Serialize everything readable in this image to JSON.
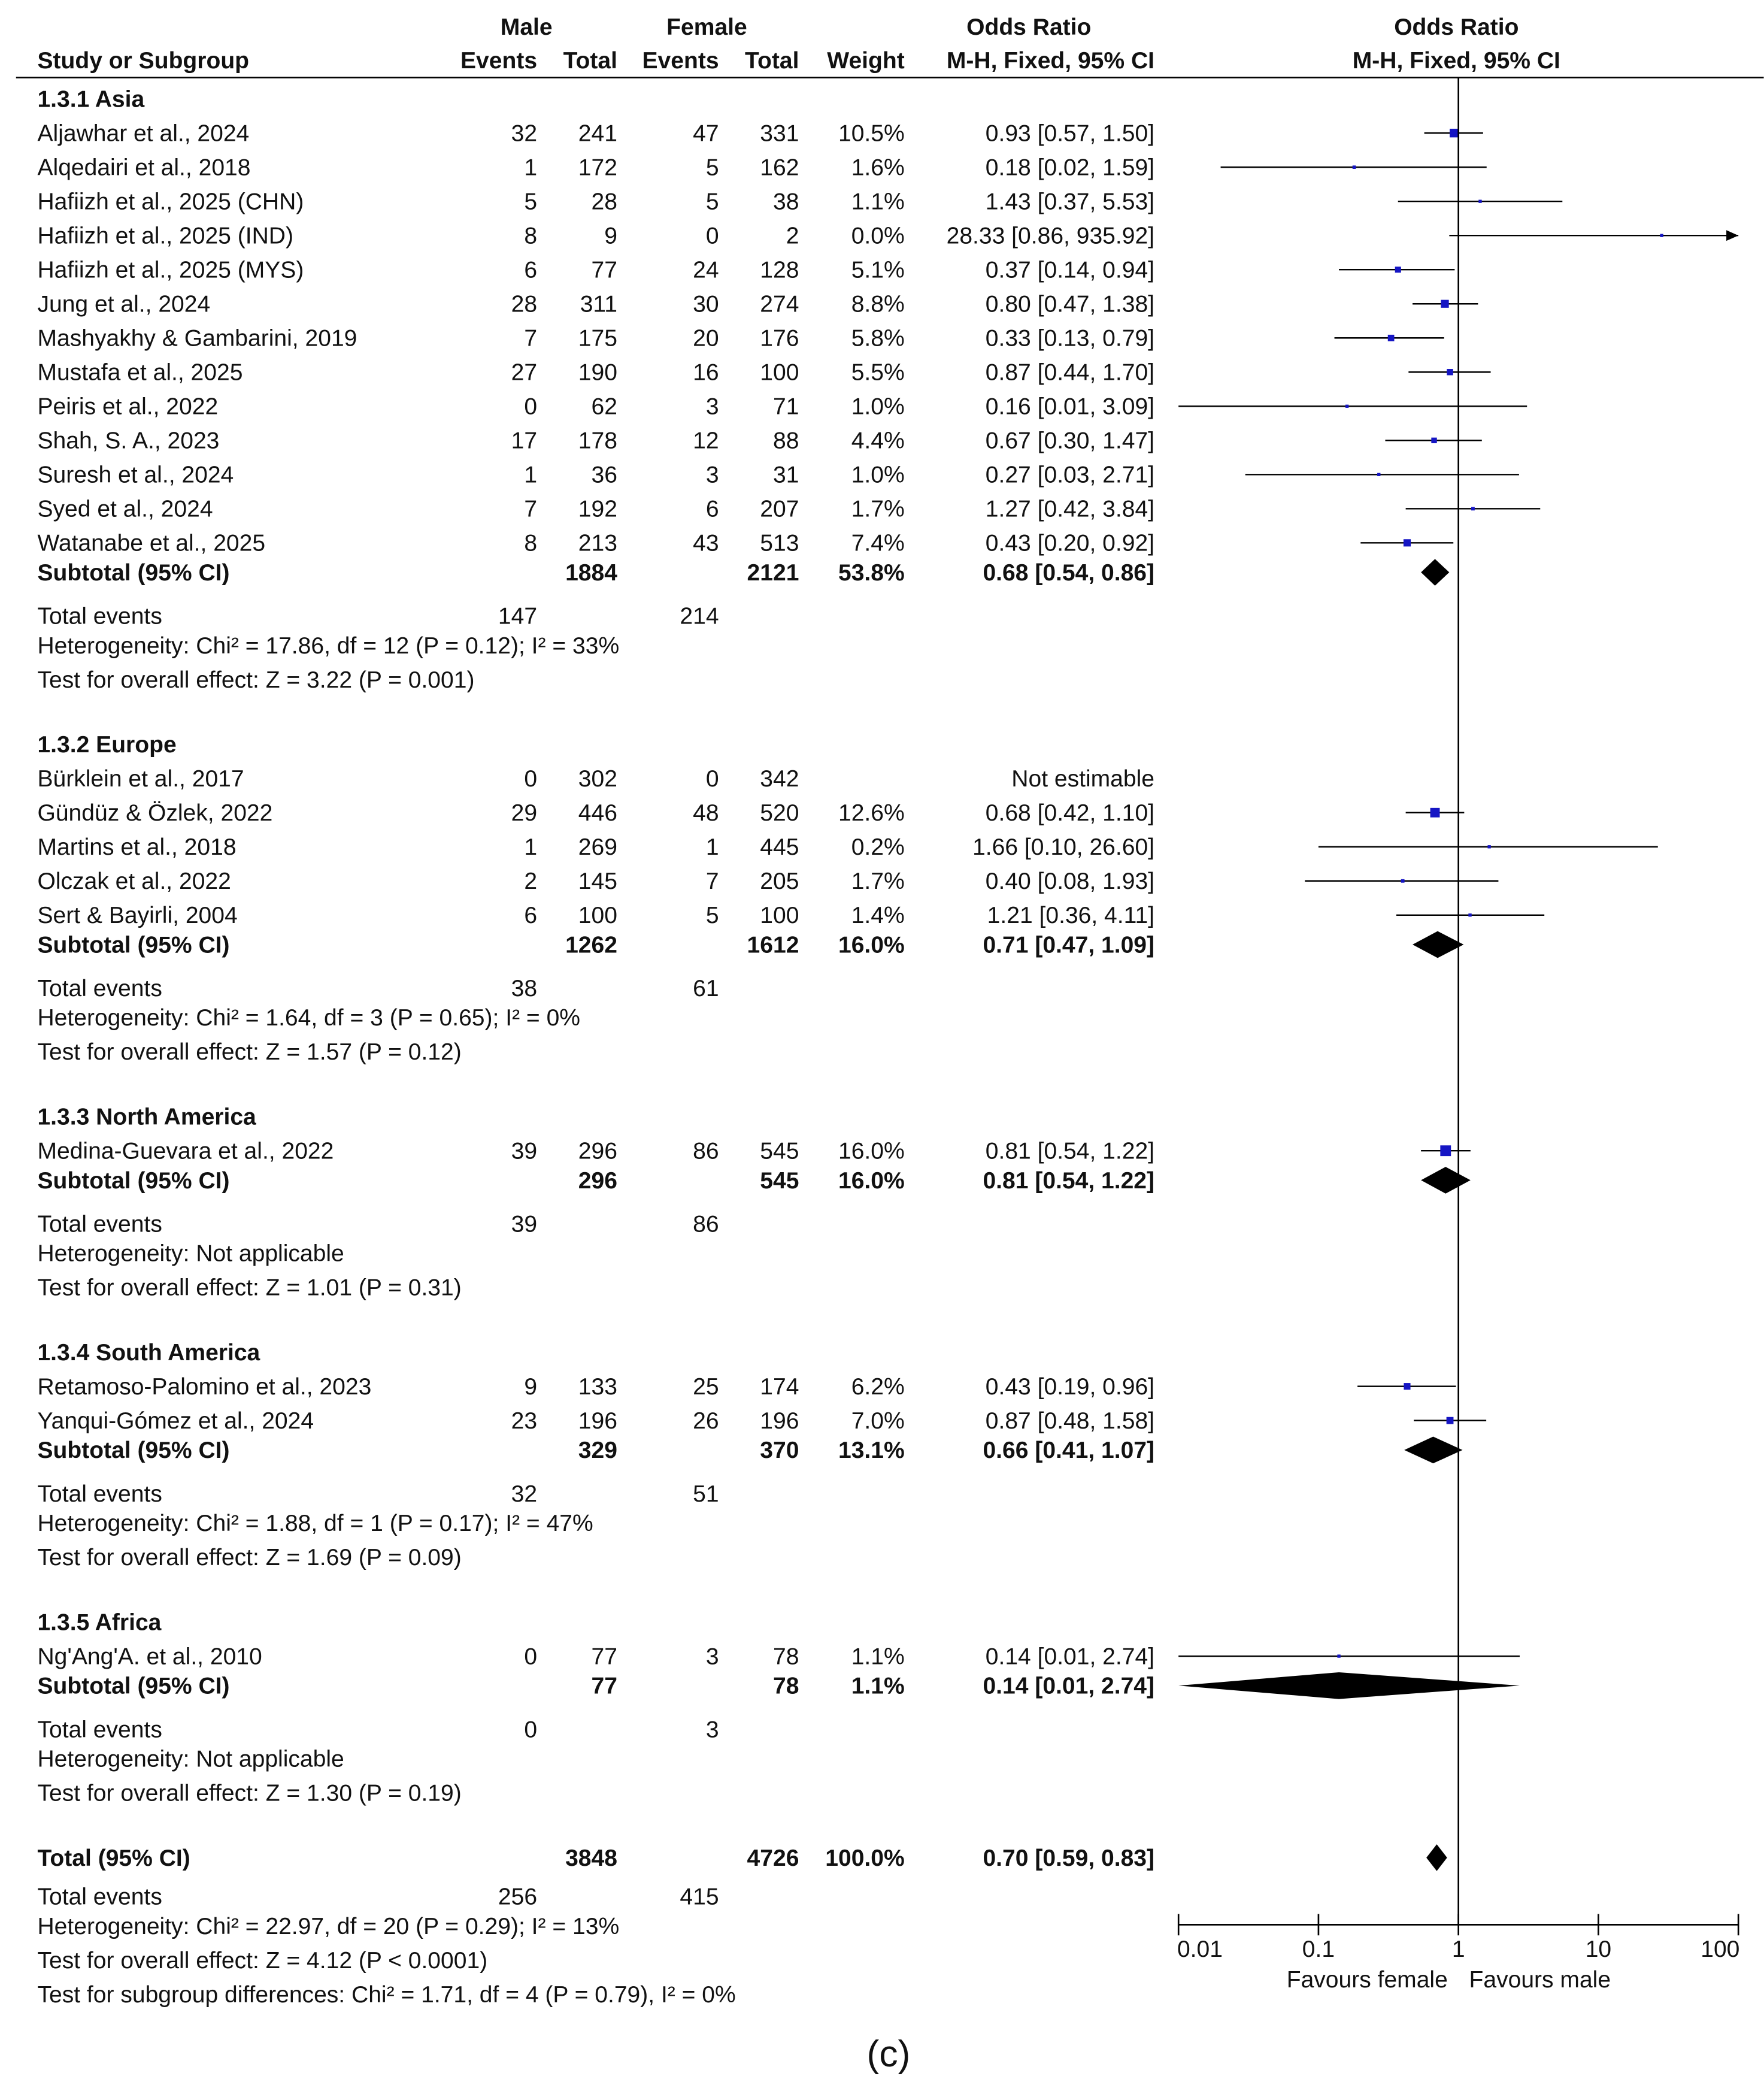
{
  "header": {
    "study_col": "Study or Subgroup",
    "male": "Male",
    "female": "Female",
    "events": "Events",
    "total": "Total",
    "weight": "Weight",
    "or_title": "Odds Ratio",
    "or_method": "M-H, Fixed, 95% CI",
    "plot_title": "Odds Ratio",
    "plot_method": "M-H, Fixed, 95% CI"
  },
  "chart_data": {
    "type": "forest",
    "measure": "Odds Ratio",
    "method": "M-H, Fixed, 95% CI",
    "x_scale": "log",
    "xlim": [
      0.01,
      100
    ],
    "ticks": [
      "0.01",
      "0.1",
      "1",
      "10",
      "100"
    ],
    "favours_left": "Favours female",
    "favours_right": "Favours male",
    "rows": [
      {
        "kind": "group",
        "label": "1.3.1 Asia"
      },
      {
        "kind": "study",
        "label": "Aljawhar et al., 2024",
        "me": "32",
        "mt": "241",
        "fe": "47",
        "ft": "331",
        "w": "10.5%",
        "ci": "0.93 [0.57, 1.50]",
        "or": 0.93,
        "lo": 0.57,
        "hi": 1.5,
        "wt": 10.5
      },
      {
        "kind": "study",
        "label": "Alqedairi et al., 2018",
        "me": "1",
        "mt": "172",
        "fe": "5",
        "ft": "162",
        "w": "1.6%",
        "ci": "0.18 [0.02, 1.59]",
        "or": 0.18,
        "lo": 0.02,
        "hi": 1.59,
        "wt": 1.6
      },
      {
        "kind": "study",
        "label": "Hafiizh et al., 2025 (CHN)",
        "me": "5",
        "mt": "28",
        "fe": "5",
        "ft": "38",
        "w": "1.1%",
        "ci": "1.43 [0.37, 5.53]",
        "or": 1.43,
        "lo": 0.37,
        "hi": 5.53,
        "wt": 1.1
      },
      {
        "kind": "study",
        "label": "Hafiizh et al., 2025 (IND)",
        "me": "8",
        "mt": "9",
        "fe": "0",
        "ft": "2",
        "w": "0.0%",
        "ci": "28.33 [0.86, 935.92]",
        "or": 28.33,
        "lo": 0.86,
        "hi": 935.92,
        "wt": 0.0
      },
      {
        "kind": "study",
        "label": "Hafiizh et al., 2025 (MYS)",
        "me": "6",
        "mt": "77",
        "fe": "24",
        "ft": "128",
        "w": "5.1%",
        "ci": "0.37 [0.14, 0.94]",
        "or": 0.37,
        "lo": 0.14,
        "hi": 0.94,
        "wt": 5.1
      },
      {
        "kind": "study",
        "label": "Jung et al.,  2024",
        "me": "28",
        "mt": "311",
        "fe": "30",
        "ft": "274",
        "w": "8.8%",
        "ci": "0.80 [0.47, 1.38]",
        "or": 0.8,
        "lo": 0.47,
        "hi": 1.38,
        "wt": 8.8
      },
      {
        "kind": "study",
        "label": "Mashyakhy & Gambarini, 2019",
        "me": "7",
        "mt": "175",
        "fe": "20",
        "ft": "176",
        "w": "5.8%",
        "ci": "0.33 [0.13, 0.79]",
        "or": 0.33,
        "lo": 0.13,
        "hi": 0.79,
        "wt": 5.8
      },
      {
        "kind": "study",
        "label": "Mustafa et al.,  2025",
        "me": "27",
        "mt": "190",
        "fe": "16",
        "ft": "100",
        "w": "5.5%",
        "ci": "0.87 [0.44, 1.70]",
        "or": 0.87,
        "lo": 0.44,
        "hi": 1.7,
        "wt": 5.5
      },
      {
        "kind": "study",
        "label": "Peiris et al., 2022",
        "me": "0",
        "mt": "62",
        "fe": "3",
        "ft": "71",
        "w": "1.0%",
        "ci": "0.16 [0.01, 3.09]",
        "or": 0.16,
        "lo": 0.01,
        "hi": 3.09,
        "wt": 1.0
      },
      {
        "kind": "study",
        "label": "Shah, S. A., 2023",
        "me": "17",
        "mt": "178",
        "fe": "12",
        "ft": "88",
        "w": "4.4%",
        "ci": "0.67 [0.30, 1.47]",
        "or": 0.67,
        "lo": 0.3,
        "hi": 1.47,
        "wt": 4.4
      },
      {
        "kind": "study",
        "label": "Suresh et al.,  2024",
        "me": "1",
        "mt": "36",
        "fe": "3",
        "ft": "31",
        "w": "1.0%",
        "ci": "0.27 [0.03, 2.71]",
        "or": 0.27,
        "lo": 0.03,
        "hi": 2.71,
        "wt": 1.0
      },
      {
        "kind": "study",
        "label": "Syed et al., 2024",
        "me": "7",
        "mt": "192",
        "fe": "6",
        "ft": "207",
        "w": "1.7%",
        "ci": "1.27 [0.42, 3.84]",
        "or": 1.27,
        "lo": 0.42,
        "hi": 3.84,
        "wt": 1.7
      },
      {
        "kind": "study",
        "label": "Watanabe et al., 2025",
        "me": "8",
        "mt": "213",
        "fe": "43",
        "ft": "513",
        "w": "7.4%",
        "ci": "0.43 [0.20, 0.92]",
        "or": 0.43,
        "lo": 0.2,
        "hi": 0.92,
        "wt": 7.4
      },
      {
        "kind": "subtotal",
        "label": "Subtotal (95% CI)",
        "mt": "1884",
        "ft": "2121",
        "w": "53.8%",
        "ci": "0.68 [0.54, 0.86]",
        "or": 0.68,
        "lo": 0.54,
        "hi": 0.86
      },
      {
        "kind": "events",
        "label": "Total events",
        "me": "147",
        "fe": "214"
      },
      {
        "kind": "note",
        "label": "Heterogeneity: Chi² = 17.86, df = 12 (P = 0.12); I² = 33%"
      },
      {
        "kind": "note",
        "label": "Test for overall effect: Z = 3.22 (P = 0.001)"
      },
      {
        "kind": "group",
        "label": "1.3.2 Europe"
      },
      {
        "kind": "study",
        "label": "Bürklein et al., 2017",
        "me": "0",
        "mt": "302",
        "fe": "0",
        "ft": "342",
        "w": "",
        "ci": "Not estimable"
      },
      {
        "kind": "study",
        "label": "Gündüz & Özlek, 2022",
        "me": "29",
        "mt": "446",
        "fe": "48",
        "ft": "520",
        "w": "12.6%",
        "ci": "0.68 [0.42, 1.10]",
        "or": 0.68,
        "lo": 0.42,
        "hi": 1.1,
        "wt": 12.6
      },
      {
        "kind": "study",
        "label": "Martins et al., 2018",
        "me": "1",
        "mt": "269",
        "fe": "1",
        "ft": "445",
        "w": "0.2%",
        "ci": "1.66 [0.10, 26.60]",
        "or": 1.66,
        "lo": 0.1,
        "hi": 26.6,
        "wt": 0.2
      },
      {
        "kind": "study",
        "label": "Olczak et al., 2022",
        "me": "2",
        "mt": "145",
        "fe": "7",
        "ft": "205",
        "w": "1.7%",
        "ci": "0.40 [0.08, 1.93]",
        "or": 0.4,
        "lo": 0.08,
        "hi": 1.93,
        "wt": 1.7
      },
      {
        "kind": "study",
        "label": "Sert & Bayirli, 2004",
        "me": "6",
        "mt": "100",
        "fe": "5",
        "ft": "100",
        "w": "1.4%",
        "ci": "1.21 [0.36, 4.11]",
        "or": 1.21,
        "lo": 0.36,
        "hi": 4.11,
        "wt": 1.4
      },
      {
        "kind": "subtotal",
        "label": "Subtotal (95% CI)",
        "mt": "1262",
        "ft": "1612",
        "w": "16.0%",
        "ci": "0.71 [0.47, 1.09]",
        "or": 0.71,
        "lo": 0.47,
        "hi": 1.09
      },
      {
        "kind": "events",
        "label": "Total events",
        "me": "38",
        "fe": "61"
      },
      {
        "kind": "note",
        "label": "Heterogeneity: Chi² = 1.64, df = 3 (P = 0.65); I² = 0%"
      },
      {
        "kind": "note",
        "label": "Test for overall effect: Z = 1.57 (P = 0.12)"
      },
      {
        "kind": "group",
        "label": "1.3.3 North America"
      },
      {
        "kind": "study",
        "label": "Medina-Guevara et al., 2022",
        "me": "39",
        "mt": "296",
        "fe": "86",
        "ft": "545",
        "w": "16.0%",
        "ci": "0.81 [0.54, 1.22]",
        "or": 0.81,
        "lo": 0.54,
        "hi": 1.22,
        "wt": 16.0
      },
      {
        "kind": "subtotal",
        "label": "Subtotal (95% CI)",
        "mt": "296",
        "ft": "545",
        "w": "16.0%",
        "ci": "0.81 [0.54, 1.22]",
        "or": 0.81,
        "lo": 0.54,
        "hi": 1.22
      },
      {
        "kind": "events",
        "label": "Total events",
        "me": "39",
        "fe": "86"
      },
      {
        "kind": "note",
        "label": "Heterogeneity: Not applicable"
      },
      {
        "kind": "note",
        "label": "Test for overall effect: Z = 1.01 (P = 0.31)"
      },
      {
        "kind": "group",
        "label": "1.3.4 South America"
      },
      {
        "kind": "study",
        "label": "Retamoso-Palomino et al., 2023",
        "me": "9",
        "mt": "133",
        "fe": "25",
        "ft": "174",
        "w": "6.2%",
        "ci": "0.43 [0.19, 0.96]",
        "or": 0.43,
        "lo": 0.19,
        "hi": 0.96,
        "wt": 6.2
      },
      {
        "kind": "study",
        "label": "Yanqui-Gómez et al., 2024",
        "me": "23",
        "mt": "196",
        "fe": "26",
        "ft": "196",
        "w": "7.0%",
        "ci": "0.87 [0.48, 1.58]",
        "or": 0.87,
        "lo": 0.48,
        "hi": 1.58,
        "wt": 7.0
      },
      {
        "kind": "subtotal",
        "label": "Subtotal (95% CI)",
        "mt": "329",
        "ft": "370",
        "w": "13.1%",
        "ci": "0.66 [0.41, 1.07]",
        "or": 0.66,
        "lo": 0.41,
        "hi": 1.07
      },
      {
        "kind": "events",
        "label": "Total events",
        "me": "32",
        "fe": "51"
      },
      {
        "kind": "note",
        "label": "Heterogeneity: Chi² = 1.88, df = 1 (P = 0.17); I² = 47%"
      },
      {
        "kind": "note",
        "label": "Test for overall effect: Z = 1.69 (P = 0.09)"
      },
      {
        "kind": "group",
        "label": "1.3.5 Africa"
      },
      {
        "kind": "study",
        "label": "Ng'Ang'A. et al., 2010",
        "me": "0",
        "mt": "77",
        "fe": "3",
        "ft": "78",
        "w": "1.1%",
        "ci": "0.14 [0.01, 2.74]",
        "or": 0.14,
        "lo": 0.01,
        "hi": 2.74,
        "wt": 1.1
      },
      {
        "kind": "subtotal",
        "label": "Subtotal (95% CI)",
        "mt": "77",
        "ft": "78",
        "w": "1.1%",
        "ci": "0.14 [0.01, 2.74]",
        "or": 0.14,
        "lo": 0.01,
        "hi": 2.74
      },
      {
        "kind": "events",
        "label": "Total events",
        "me": "0",
        "fe": "3"
      },
      {
        "kind": "note",
        "label": "Heterogeneity: Not applicable"
      },
      {
        "kind": "note",
        "label": "Test for overall effect: Z = 1.30 (P = 0.19)"
      },
      {
        "kind": "total",
        "label": "Total (95% CI)",
        "mt": "3848",
        "ft": "4726",
        "w": "100.0%",
        "ci": "0.70 [0.59, 0.83]",
        "or": 0.7,
        "lo": 0.59,
        "hi": 0.83
      },
      {
        "kind": "events",
        "label": "Total events",
        "me": "256",
        "fe": "415"
      },
      {
        "kind": "note",
        "label": "Heterogeneity: Chi² = 22.97, df = 20 (P = 0.29); I² = 13%"
      },
      {
        "kind": "note",
        "label": "Test for overall effect: Z = 4.12 (P < 0.0001)"
      },
      {
        "kind": "note",
        "label": "Test for subgroup differences: Chi² = 1.71, df = 4 (P = 0.79), I² = 0%"
      }
    ]
  },
  "caption": "(c)",
  "colors": {
    "text": "#111111",
    "square": "#1515c4",
    "line": "#000000"
  }
}
